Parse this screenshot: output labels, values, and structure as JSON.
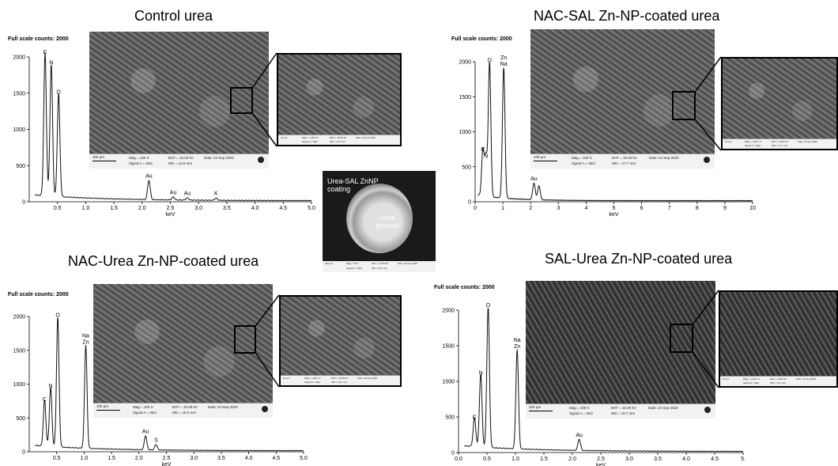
{
  "panels": [
    {
      "title": "Control urea",
      "full_scale": "Full scale counts: 2000",
      "sem_info": {
        "scale": "100 µm",
        "mag": "Mag =   100 X",
        "eht": "EHT = 10.00 kV",
        "signal": "Signal A = SE2",
        "wd": "WD = 13.6 mm",
        "date": "Date: 24 Sep 2020"
      },
      "zoom_info": {
        "scale": "10 µm",
        "mag": "Mag = 1.00 K X",
        "eht": "EHT = 10.00 kV",
        "signal": "Signal A = SE2",
        "wd": "WD = 14.0 mm",
        "date": "Date: 24 Sep 2020"
      }
    },
    {
      "title": "NAC-SAL Zn-NP-coated urea",
      "full_scale": "Full scale counts: 2000",
      "sem_info": {
        "scale": "100 µm",
        "mag": "Mag =   100 X",
        "eht": "EHT = 10.00 kV",
        "signal": "Signal A = SE2",
        "wd": "WD = 17.7 mm",
        "date": "Date: 24 Sep 2020"
      },
      "zoom_info": {
        "scale": "10 µm",
        "mag": "Mag = 1.00 K X",
        "eht": "EHT = 10.00 kV",
        "signal": "Signal A = SE2",
        "wd": "WD = 17.7 mm",
        "date": "Date: 24 Sep 2020"
      }
    },
    {
      "title": "NAC-Urea Zn-NP-coated urea",
      "full_scale": "Full scale counts: 2000",
      "sem_info": {
        "scale": "100 µm",
        "mag": "Mag =   100 X",
        "eht": "EHT = 10.00 kV",
        "signal": "Signal A = SE2",
        "wd": "WD = 18.2 mm",
        "date": "Date: 24 Sep 2020"
      },
      "zoom_info": {
        "scale": "10 µm",
        "mag": "Mag = 1.00 K X",
        "eht": "EHT = 10.00 kV",
        "signal": "Signal A = SE2",
        "wd": "WD = 18.2 mm",
        "date": "Date: 24 Sep 2020"
      }
    },
    {
      "title": "SAL-Urea Zn-NP-coated urea",
      "full_scale": "Full scale counts: 2000",
      "sem_info": {
        "scale": "100 µm",
        "mag": "Mag =   100 X",
        "eht": "EHT = 10.00 kV",
        "signal": "Signal A = SE2",
        "wd": "WD = 19.7 mm",
        "date": "Date: 24 Sep 2020"
      },
      "zoom_info": {
        "scale": "10 µm",
        "mag": "Mag = 1.00 K X",
        "eht": "EHT = 10.00 kV",
        "signal": "Signal A = SE2",
        "wd": "WD = 19.7 mm",
        "date": "Date: 24 Sep 2020"
      }
    }
  ],
  "center_image": {
    "coating_label": "Urea-SAL ZnNP coating",
    "granule_label": "Urea granule",
    "info": {
      "scale": "200 µm",
      "mag": "Mag =   35 X",
      "eht": "EHT = 10.00 kV",
      "signal": "Signal A = SE2",
      "wd": "WD = 20.2 mm",
      "date": "Date: 24 Sep 2020"
    }
  },
  "chart_data": [
    {
      "type": "line",
      "title": "Control urea",
      "xlabel": "keV",
      "ylabel": "",
      "xlim": [
        0,
        5.0
      ],
      "ylim": [
        0,
        2000
      ],
      "xticks": [
        "0.5",
        "1.0",
        "1.5",
        "2.0",
        "2.5",
        "3.0",
        "3.5",
        "4.0",
        "4.5",
        "5.0"
      ],
      "yticks": [
        "0",
        "500",
        "1000",
        "1500",
        "2000"
      ],
      "peaks": [
        {
          "label": "C",
          "x": 0.28,
          "y": 2000
        },
        {
          "label": "N",
          "x": 0.39,
          "y": 1850
        },
        {
          "label": "O",
          "x": 0.52,
          "y": 1450
        },
        {
          "label": "Au",
          "x": 2.12,
          "y": 290
        },
        {
          "label": "Au",
          "x": 2.55,
          "y": 60
        },
        {
          "label": "Au",
          "x": 2.8,
          "y": 50
        },
        {
          "label": "K",
          "x": 3.31,
          "y": 50
        }
      ]
    },
    {
      "type": "line",
      "title": "NAC-SAL Zn-NP-coated urea",
      "xlabel": "keV",
      "ylabel": "",
      "xlim": [
        0,
        10
      ],
      "ylim": [
        0,
        2000
      ],
      "xticks": [
        "0",
        "1",
        "2",
        "3",
        "4",
        "5",
        "6",
        "7",
        "8",
        "9",
        "10"
      ],
      "yticks": [
        "0",
        "500",
        "1000",
        "1500",
        "2000"
      ],
      "peaks": [
        {
          "label": "C",
          "x": 0.28,
          "y": 680
        },
        {
          "label": "N",
          "x": 0.39,
          "y": 580
        },
        {
          "label": "O",
          "x": 0.52,
          "y": 1950
        },
        {
          "label": "Zn\nNa",
          "x": 1.03,
          "y": 1900
        },
        {
          "label": "Au",
          "x": 2.12,
          "y": 260
        },
        {
          "label": "",
          "x": 2.3,
          "y": 220
        }
      ]
    },
    {
      "type": "line",
      "title": "NAC-Urea Zn-NP-coated urea",
      "xlabel": "keV",
      "ylabel": "",
      "xlim": [
        0,
        5.0
      ],
      "ylim": [
        0,
        2000
      ],
      "xticks": [
        "0.5",
        "1.0",
        "1.5",
        "2.0",
        "2.5",
        "3.0",
        "3.5",
        "4.0",
        "4.5",
        "5.0"
      ],
      "yticks": [
        "0",
        "500",
        "1000",
        "1500",
        "2000"
      ],
      "peaks": [
        {
          "label": "C",
          "x": 0.28,
          "y": 700
        },
        {
          "label": "N",
          "x": 0.39,
          "y": 900
        },
        {
          "label": "O",
          "x": 0.52,
          "y": 1950
        },
        {
          "label": "Na\nZn",
          "x": 1.03,
          "y": 1550
        },
        {
          "label": "Au",
          "x": 2.12,
          "y": 230
        },
        {
          "label": "S",
          "x": 2.31,
          "y": 100
        }
      ]
    },
    {
      "type": "line",
      "title": "SAL-Urea Zn-NP-coated urea",
      "xlabel": "keV",
      "ylabel": "",
      "xlim": [
        0,
        5.0
      ],
      "ylim": [
        0,
        2000
      ],
      "xticks": [
        "0.0",
        "0.5",
        "1.0",
        "1.5",
        "2.0",
        "2.5",
        "3.0",
        "3.5",
        "4.0",
        "4.5",
        "5."
      ],
      "yticks": [
        "0",
        "500",
        "1000",
        "1500",
        "2000"
      ],
      "peaks": [
        {
          "label": "C",
          "x": 0.28,
          "y": 430
        },
        {
          "label": "N",
          "x": 0.39,
          "y": 1050
        },
        {
          "label": "O",
          "x": 0.52,
          "y": 2000
        },
        {
          "label": "Na\nZn",
          "x": 1.03,
          "y": 1420
        },
        {
          "label": "Au",
          "x": 2.12,
          "y": 180
        }
      ]
    }
  ]
}
